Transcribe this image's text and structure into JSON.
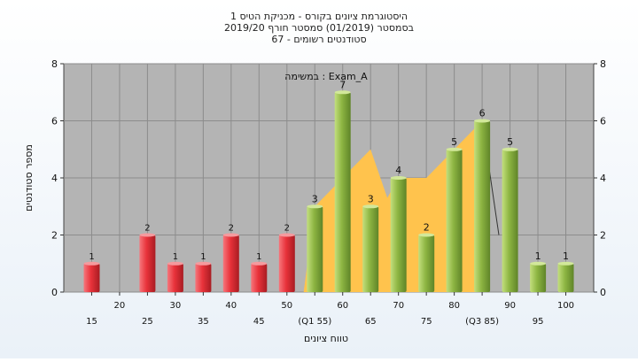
{
  "chart_data": {
    "type": "bar",
    "title_lines": [
      "היסטוגרמת ציונים בקורס - מכניקת הטיס 1",
      "בסמסטר  (01/2019)  סמסטר חורף 2019/20",
      "סטודנטים רשומים - 67"
    ],
    "annotation": "במשימה : Exam_A",
    "ylabel": "מספר סטודנטים",
    "xlabel": "טווח ציונים",
    "ylim": [
      0,
      8
    ],
    "yticks": [
      0,
      2,
      4,
      6,
      8
    ],
    "grid": true,
    "colors": {
      "fail": "#e8323a",
      "pass": "#8db542",
      "area": "#ffc34d",
      "plot_bg": "#b4b4b4"
    },
    "x_tick_labels": [
      {
        "x": 15,
        "text": "15",
        "row": 2
      },
      {
        "x": 20,
        "text": "20",
        "row": 1
      },
      {
        "x": 25,
        "text": "25",
        "row": 2
      },
      {
        "x": 30,
        "text": "30",
        "row": 1
      },
      {
        "x": 35,
        "text": "35",
        "row": 2
      },
      {
        "x": 40,
        "text": "40",
        "row": 1
      },
      {
        "x": 45,
        "text": "45",
        "row": 2
      },
      {
        "x": 50,
        "text": "50",
        "row": 1
      },
      {
        "x": 55,
        "text": "(Q1 55)",
        "row": 2
      },
      {
        "x": 60,
        "text": "60",
        "row": 1
      },
      {
        "x": 65,
        "text": "65",
        "row": 2
      },
      {
        "x": 70,
        "text": "70",
        "row": 1
      },
      {
        "x": 75,
        "text": "75",
        "row": 2
      },
      {
        "x": 80,
        "text": "80",
        "row": 1
      },
      {
        "x": 85,
        "text": "(Q3 85)",
        "row": 2
      },
      {
        "x": 90,
        "text": "90",
        "row": 1
      },
      {
        "x": 95,
        "text": "95",
        "row": 2
      },
      {
        "x": 100,
        "text": "100",
        "row": 1
      }
    ],
    "bars": [
      {
        "x": 15,
        "value": 1,
        "group": "fail"
      },
      {
        "x": 25,
        "value": 2,
        "group": "fail"
      },
      {
        "x": 30,
        "value": 1,
        "group": "fail"
      },
      {
        "x": 35,
        "value": 1,
        "group": "fail"
      },
      {
        "x": 40,
        "value": 2,
        "group": "fail"
      },
      {
        "x": 45,
        "value": 1,
        "group": "fail"
      },
      {
        "x": 50,
        "value": 2,
        "group": "fail"
      },
      {
        "x": 55,
        "value": 3,
        "group": "pass"
      },
      {
        "x": 60,
        "value": 7,
        "group": "pass"
      },
      {
        "x": 65,
        "value": 3,
        "group": "pass"
      },
      {
        "x": 70,
        "value": 4,
        "group": "pass"
      },
      {
        "x": 75,
        "value": 2,
        "group": "pass"
      },
      {
        "x": 80,
        "value": 5,
        "group": "pass"
      },
      {
        "x": 85,
        "value": 6,
        "group": "pass"
      },
      {
        "x": 90,
        "value": 5,
        "group": "pass"
      },
      {
        "x": 95,
        "value": 1,
        "group": "pass"
      },
      {
        "x": 100,
        "value": 1,
        "group": "pass"
      }
    ],
    "interquartile_area": [
      {
        "x": 53,
        "y": 0
      },
      {
        "x": 55,
        "y": 3
      },
      {
        "x": 60,
        "y": 4
      },
      {
        "x": 65,
        "y": 5
      },
      {
        "x": 68,
        "y": 3.3
      },
      {
        "x": 70,
        "y": 4
      },
      {
        "x": 75,
        "y": 4
      },
      {
        "x": 80,
        "y": 5
      },
      {
        "x": 85,
        "y": 6
      },
      {
        "x": 85,
        "y": 0
      }
    ],
    "connector_line": [
      {
        "x": 85,
        "y": 6
      },
      {
        "x": 88,
        "y": 2
      }
    ]
  }
}
